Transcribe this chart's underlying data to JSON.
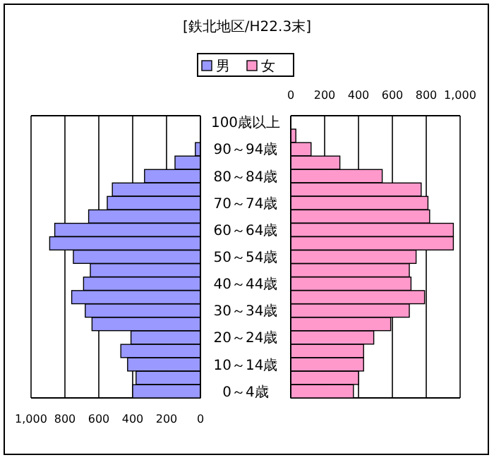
{
  "chart_data": [
    {
      "type": "bar",
      "title": "[鉄北地区/H22.3末]",
      "orientation": "horizontal",
      "categories": [
        null,
        null,
        null,
        null,
        null,
        null,
        null,
        null,
        null,
        null,
        null,
        null,
        null,
        null,
        null,
        null,
        null,
        null,
        null,
        null,
        null
      ],
      "series": [
        {
          "name": "男",
          "color": "#9999ff",
          "values": [
            0,
            null,
            30,
            150,
            330,
            520,
            550,
            660,
            860,
            890,
            750,
            650,
            690,
            760,
            680,
            640,
            410,
            470,
            430,
            380,
            400
          ]
        }
      ],
      "xlim": [
        1000,
        0
      ],
      "xticks": [
        {
          "value": 1000,
          "label": "1,000"
        },
        800,
        600,
        400,
        200,
        0
      ],
      "grid": "x",
      "legend": "top",
      "tick_labels": "x"
    },
    {
      "type": "bar",
      "orientation": "horizontal",
      "categories": [
        "100歳以上",
        null,
        "90～94歳",
        null,
        "80～84歳",
        null,
        "70～74歳",
        null,
        "60～64歳",
        null,
        "50～54歳",
        null,
        "40～44歳",
        null,
        "30～34歳",
        null,
        "20～24歳",
        null,
        "10～14歳",
        null,
        "0～4歳"
      ],
      "series": [
        {
          "name": "女",
          "color": "#ff99cc",
          "values": [
            null,
            30,
            120,
            290,
            540,
            770,
            810,
            820,
            960,
            960,
            740,
            700,
            710,
            790,
            700,
            590,
            490,
            430,
            430,
            400,
            370
          ]
        }
      ],
      "xlim": [
        0,
        1000
      ],
      "xticks": [
        0,
        200,
        400,
        600,
        800,
        {
          "value": 1000,
          "label": "1,000"
        }
      ],
      "grid": "x",
      "legend": "top"
    }
  ]
}
